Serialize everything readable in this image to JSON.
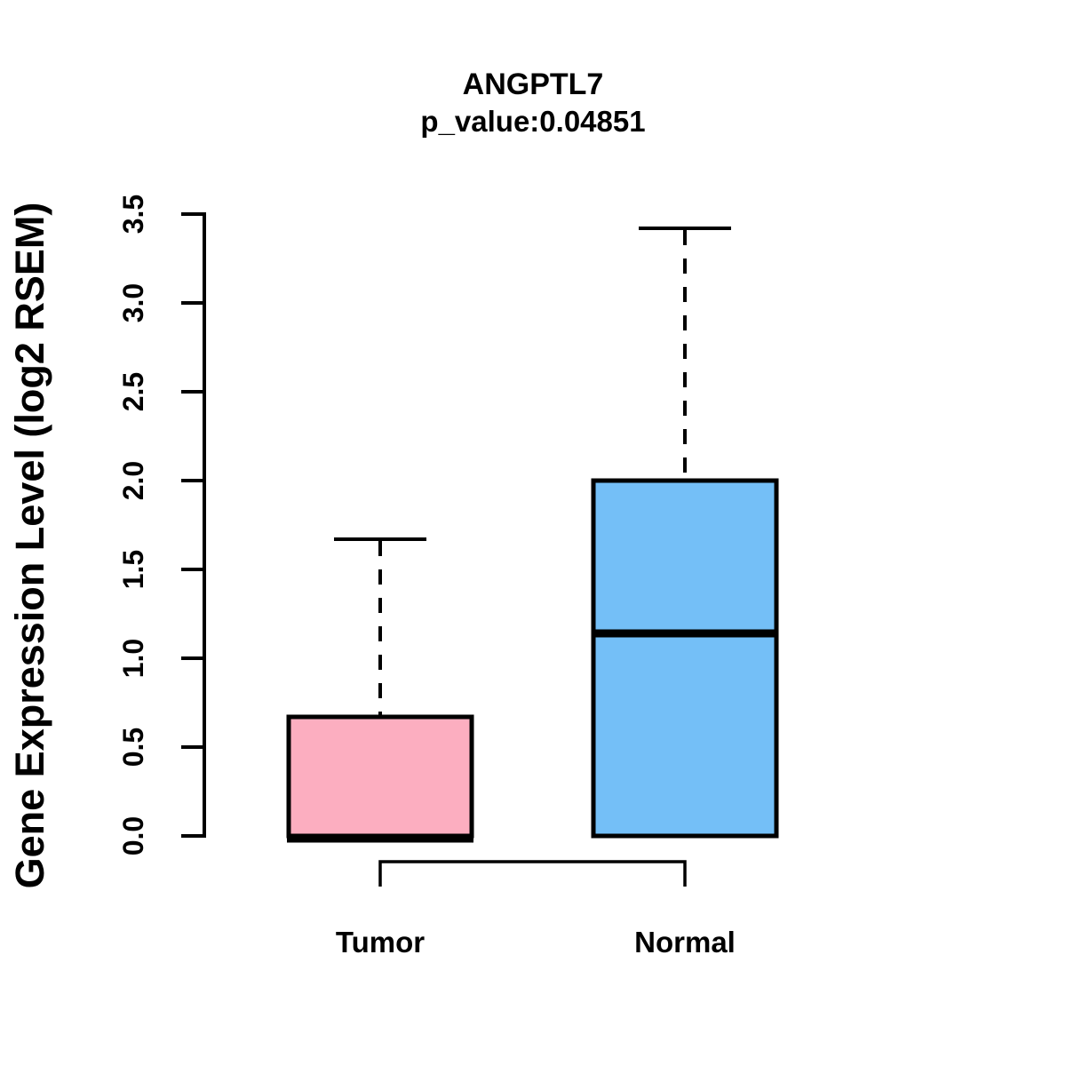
{
  "chart_data": {
    "type": "boxplot",
    "title": "ANGPTL7",
    "subtitle": "p_value:0.04851",
    "ylabel": "Gene Expression Level (log2 RSEM)",
    "categories": [
      "Tumor",
      "Normal"
    ],
    "ytick_labels": [
      "0.0",
      "0.5",
      "1.0",
      "1.5",
      "2.0",
      "2.5",
      "3.0",
      "3.5"
    ],
    "ylim": [
      0.0,
      3.5
    ],
    "grid": "off",
    "series": [
      {
        "name": "Tumor",
        "fill_color": "#FCAEC0",
        "whisker_low": 0.0,
        "q1": 0.0,
        "median": 0.0,
        "q3": 0.67,
        "whisker_high": 1.67
      },
      {
        "name": "Normal",
        "fill_color": "#74BFF7",
        "whisker_low": 0.0,
        "q1": 0.0,
        "median": 1.14,
        "q3": 2.0,
        "whisker_high": 3.42
      }
    ],
    "comparison_bracket": {
      "between": [
        "Tumor",
        "Normal"
      ]
    },
    "stroke_color": "#000000",
    "background_color": "#FFFFFF"
  }
}
